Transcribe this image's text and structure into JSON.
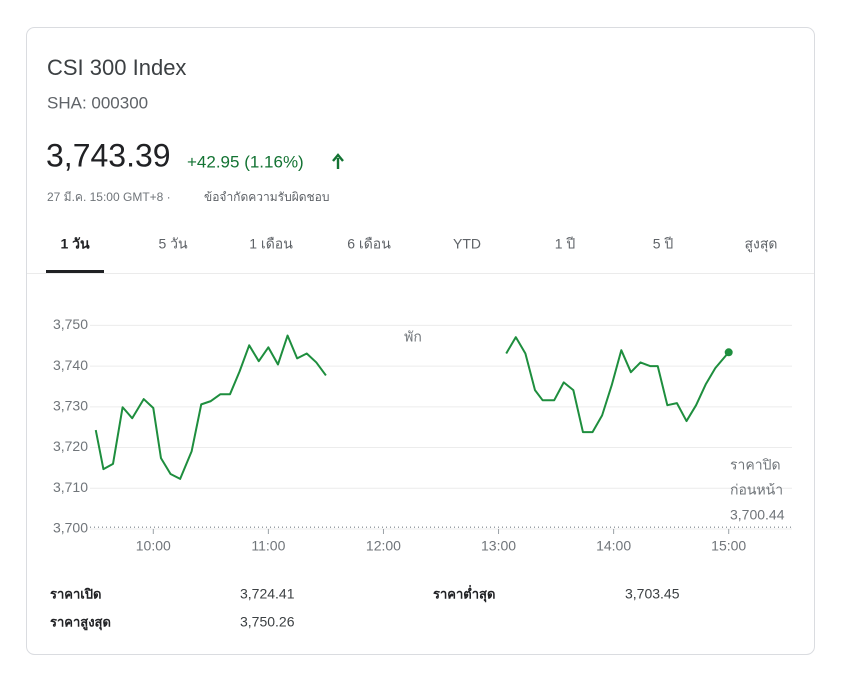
{
  "header": {
    "title": "CSI 300 Index",
    "ticker": "SHA: 000300",
    "price": "3,743.39",
    "change": "+42.95 (1.16%)",
    "timestamp": "27 มี.ค. 15:00 GMT+8 ·",
    "disclaimer": "ข้อจำกัดความรับผิดชอบ"
  },
  "tabs": [
    "1 วัน",
    "5 วัน",
    "1 เดือน",
    "6 เดือน",
    "YTD",
    "1 ปี",
    "5 ปี",
    "สูงสุด"
  ],
  "active_tab": 0,
  "chart_data": {
    "type": "line",
    "color": "#1e8e3e",
    "x": [
      570,
      574,
      579,
      584,
      589,
      595,
      600,
      604,
      609,
      614,
      620,
      625,
      630,
      635,
      640,
      645,
      650,
      655,
      660,
      665,
      670,
      675,
      680,
      685,
      690,
      null,
      784,
      789,
      794,
      799,
      803,
      809,
      814,
      819,
      824,
      829,
      834,
      839,
      844,
      849,
      854,
      859,
      863,
      868,
      873,
      878,
      883,
      888,
      893,
      900
    ],
    "values": [
      3724.3,
      3714.7,
      3716,
      3729.9,
      3727.2,
      3731.9,
      3729.7,
      3717.4,
      3713.5,
      3712.3,
      3719.1,
      3730.6,
      3731.4,
      3733.1,
      3733.1,
      3738.7,
      3745.1,
      3741.2,
      3744.6,
      3740.4,
      3747.5,
      3741.9,
      3743.1,
      3740.9,
      3737.7,
      null,
      3743.1,
      3747.1,
      3743.1,
      3734.1,
      3731.6,
      3731.6,
      3736,
      3734.1,
      3723.8,
      3723.8,
      3727.9,
      3735.3,
      3743.9,
      3738.5,
      3740.9,
      3740,
      3740,
      3730.4,
      3730.9,
      3726.5,
      3730.4,
      3735.5,
      3739.5,
      3743.39
    ],
    "xlim": [
      567,
      933
    ],
    "xticks": [
      {
        "value": 600,
        "label": "10:00"
      },
      {
        "value": 660,
        "label": "11:00"
      },
      {
        "value": 720,
        "label": "12:00"
      },
      {
        "value": 780,
        "label": "13:00"
      },
      {
        "value": 840,
        "label": "14:00"
      },
      {
        "value": 900,
        "label": "15:00"
      }
    ],
    "ylim": [
      3700,
      3755
    ],
    "yticks": [
      {
        "value": 3700,
        "label": "3,700"
      },
      {
        "value": 3710,
        "label": "3,710"
      },
      {
        "value": 3720,
        "label": "3,720"
      },
      {
        "value": 3730,
        "label": "3,730"
      },
      {
        "value": 3740,
        "label": "3,740"
      },
      {
        "value": 3750,
        "label": "3,750"
      }
    ],
    "grid": true,
    "annotation": "พัก",
    "previous_close": {
      "value": 3700.44,
      "label": "3,700.44"
    },
    "previous_close_label": [
      "ราคาปิด",
      "ก่อนหน้า"
    ]
  },
  "stats": [
    {
      "label": "ราคาเปิด",
      "value": "3,724.41"
    },
    {
      "label": "ราคาต่ำสุด",
      "value": "3,703.45"
    },
    {
      "label": "ราคาสูงสุด",
      "value": "3,750.26"
    }
  ]
}
